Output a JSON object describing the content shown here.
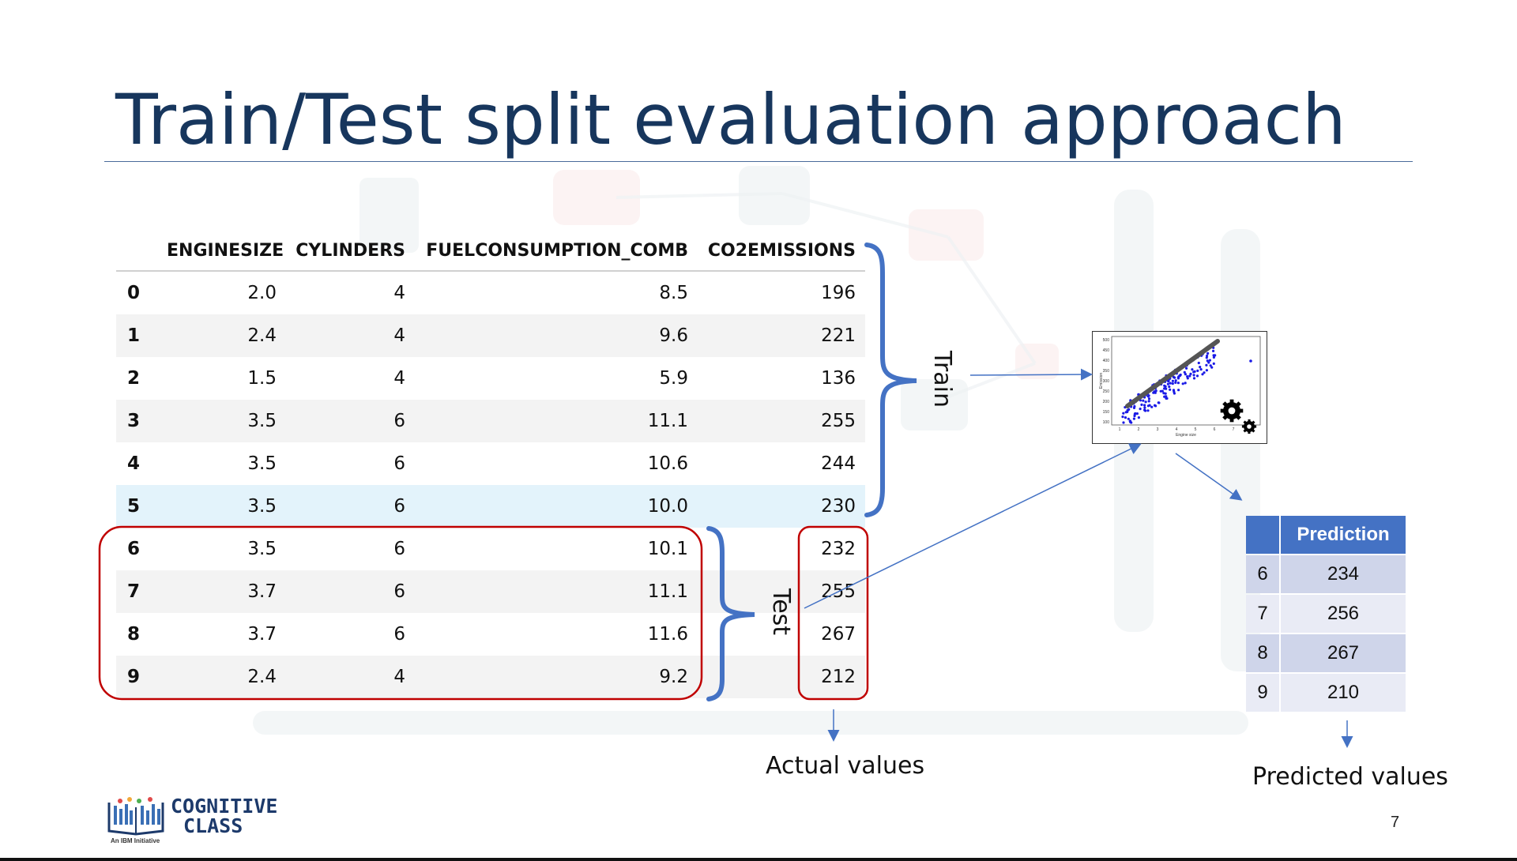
{
  "slide": {
    "title": "Train/Test split evaluation approach",
    "page_number": "7"
  },
  "table": {
    "columns": [
      "",
      "ENGINESIZE",
      "CYLINDERS",
      "FUELCONSUMPTION_COMB",
      "CO2EMISSIONS"
    ],
    "rows": [
      [
        "0",
        "2.0",
        "4",
        "8.5",
        "196"
      ],
      [
        "1",
        "2.4",
        "4",
        "9.6",
        "221"
      ],
      [
        "2",
        "1.5",
        "4",
        "5.9",
        "136"
      ],
      [
        "3",
        "3.5",
        "6",
        "11.1",
        "255"
      ],
      [
        "4",
        "3.5",
        "6",
        "10.6",
        "244"
      ],
      [
        "5",
        "3.5",
        "6",
        "10.0",
        "230"
      ],
      [
        "6",
        "3.5",
        "6",
        "10.1",
        "232"
      ],
      [
        "7",
        "3.7",
        "6",
        "11.1",
        "255"
      ],
      [
        "8",
        "3.7",
        "6",
        "11.6",
        "267"
      ],
      [
        "9",
        "2.4",
        "4",
        "9.2",
        "212"
      ]
    ]
  },
  "labels": {
    "train": "Train",
    "test": "Test",
    "actual": "Actual values",
    "predicted": "Predicted values"
  },
  "prediction_table": {
    "header": "Prediction",
    "rows": [
      [
        "6",
        "234"
      ],
      [
        "7",
        "256"
      ],
      [
        "8",
        "267"
      ],
      [
        "9",
        "210"
      ]
    ]
  },
  "mini_chart": {
    "xlabel": "Engine size",
    "ylabel": "Emission",
    "yticks": [
      "500",
      "450",
      "400",
      "350",
      "300",
      "250",
      "200",
      "150",
      "100"
    ],
    "xticks": [
      "1",
      "2",
      "3",
      "4",
      "5",
      "6",
      "7",
      "8"
    ]
  },
  "logo": {
    "line1": "COGNITIVE",
    "line2": "CLASS",
    "tagline": "An IBM Initiative"
  },
  "colors": {
    "title": "#17365d",
    "brace": "#4472c4",
    "test_outline": "#c00000",
    "prediction_header": "#4472c4"
  },
  "icons": [
    "gear-icon",
    "arrow-icon",
    "brace-icon"
  ]
}
